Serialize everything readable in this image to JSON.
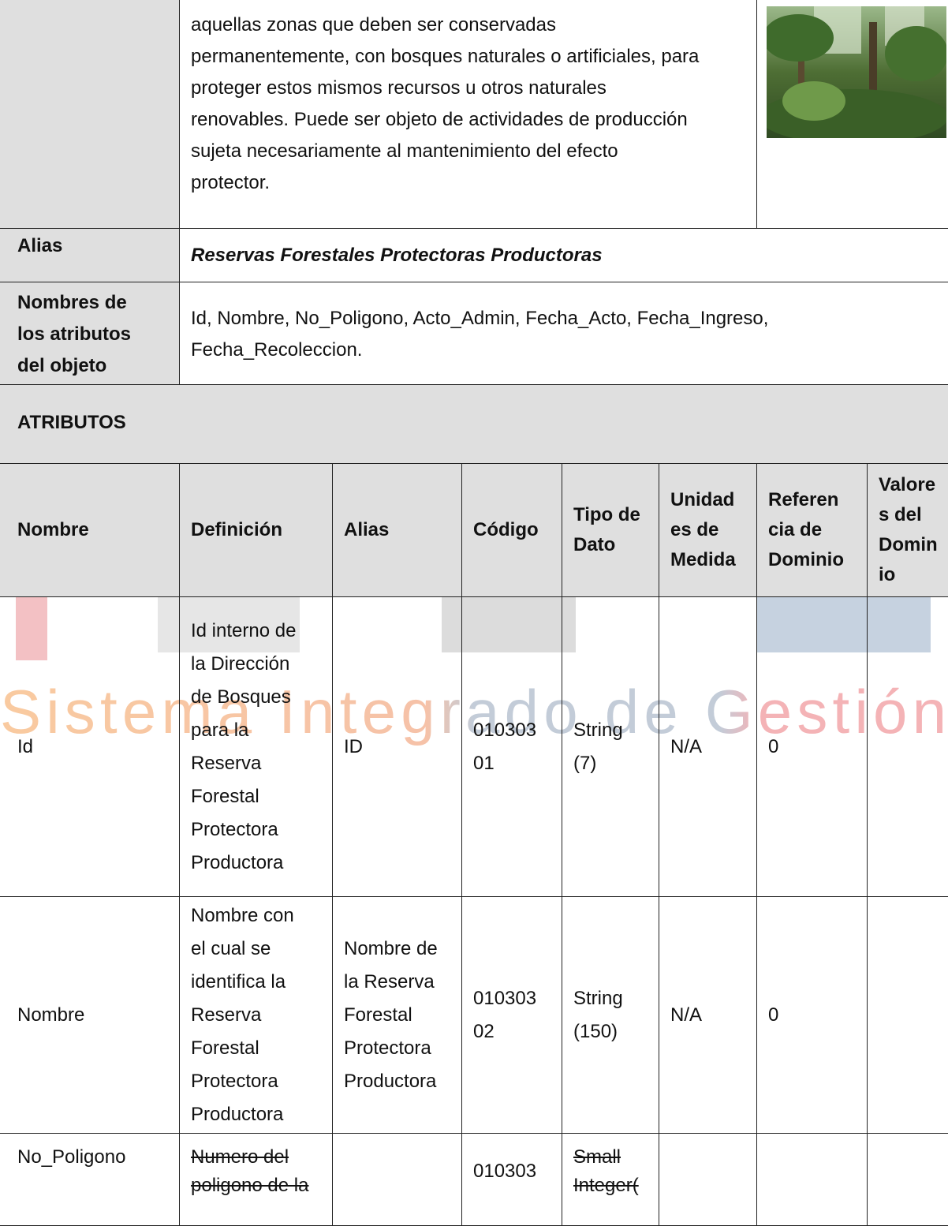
{
  "definition": {
    "lines": [
      "aquellas zonas que deben ser conservadas",
      "permanentemente, con bosques naturales o artificiales, para",
      "proteger estos mismos recursos u otros naturales",
      "renovables. Puede ser objeto de actividades de producción",
      "sujeta necesariamente al mantenimiento del efecto",
      "protector."
    ]
  },
  "alias": {
    "label": "Alias",
    "value": "Reservas Forestales Protectoras Productoras"
  },
  "attribute_names": {
    "label": [
      "Nombres de",
      "los atributos",
      "del objeto"
    ],
    "value": [
      "Id, Nombre, No_Poligono, Acto_Admin, Fecha_Acto, Fecha_Ingreso,",
      "Fecha_Recoleccion."
    ]
  },
  "section_title": "ATRIBUTOS",
  "table": {
    "columns": [
      [
        "Nombre"
      ],
      [
        "Definición"
      ],
      [
        "Alias"
      ],
      [
        "Código"
      ],
      [
        "Tipo de",
        "Dato"
      ],
      [
        "Unidad",
        "es de",
        "Medida"
      ],
      [
        "Referen",
        "cia de",
        "Dominio"
      ],
      [
        "Valore",
        "s del",
        "Domin",
        "io"
      ]
    ],
    "rows": [
      {
        "cells": [
          [
            "Id"
          ],
          [
            "Id interno de",
            "la Dirección",
            "de Bosques",
            "para la",
            "Reserva",
            "Forestal",
            "Protectora",
            "Productora"
          ],
          [
            "ID"
          ],
          [
            "010303",
            "01"
          ],
          [
            "String",
            "(7)"
          ],
          [
            "N/A"
          ],
          [
            "0"
          ],
          null
        ],
        "struck_cells": []
      },
      {
        "cells": [
          [
            "Nombre"
          ],
          [
            "Nombre con",
            "el cual se",
            "identifica la",
            "Reserva",
            "Forestal",
            "Protectora",
            "Productora"
          ],
          [
            "Nombre de",
            "la Reserva",
            "Forestal",
            "Protectora",
            "Productora"
          ],
          [
            "010303",
            "02"
          ],
          [
            "String",
            "(150)"
          ],
          [
            "N/A"
          ],
          [
            "0"
          ],
          null
        ],
        "struck_cells": []
      },
      {
        "cells": [
          [
            "No_Poligono"
          ],
          [
            "Numero del",
            "poligono de la"
          ],
          null,
          [
            "010303"
          ],
          [
            "Small",
            "Integer("
          ],
          null,
          null,
          null
        ],
        "struck_cells": [
          1,
          4
        ]
      }
    ]
  },
  "watermark": "Sistema Integrado de Gestión"
}
